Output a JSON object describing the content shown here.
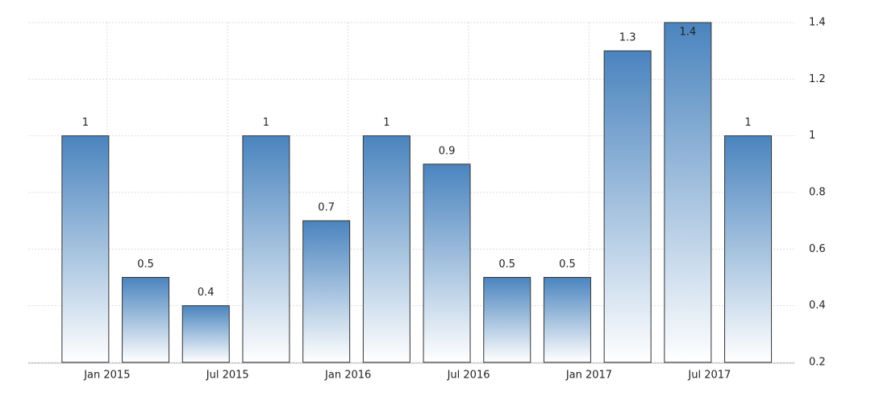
{
  "chart_data": {
    "type": "bar",
    "categories": [
      "Jan 2015",
      null,
      "Jul 2015",
      null,
      "Jan 2016",
      null,
      "Jul 2016",
      null,
      "Jan 2017",
      null,
      "Jul 2017",
      null
    ],
    "values": [
      1,
      0.5,
      0.4,
      1,
      0.7,
      1,
      0.9,
      0.5,
      0.5,
      1.3,
      1.4,
      1
    ],
    "color": "#4a84be",
    "ylim": [
      0.2,
      1.4
    ],
    "yticks": [
      0.2,
      0.4,
      0.6,
      0.8,
      1,
      1.2,
      1.4
    ],
    "grid": true
  }
}
